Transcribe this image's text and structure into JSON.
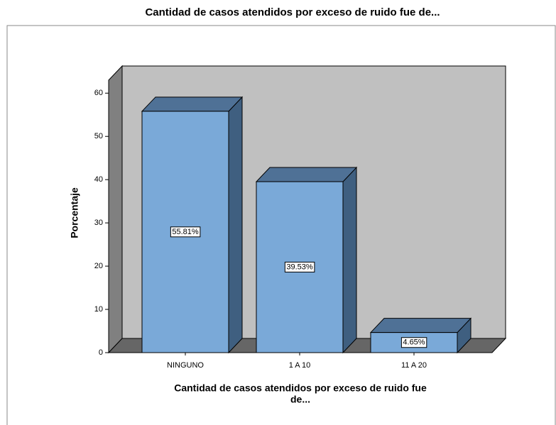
{
  "chart_data": {
    "type": "bar3d",
    "title": "Cantidad de casos atendidos por exceso de ruido fue de...",
    "ylabel": "Porcentaje",
    "xlabel": [
      "Cantidad de casos atendidos por exceso de ruido fue",
      "de..."
    ],
    "categories": [
      "NINGUNO",
      "1 A 10",
      "11 A 20"
    ],
    "values": [
      55.81,
      39.53,
      4.65
    ],
    "value_labels": [
      "55.81%",
      "39.53%",
      "4.65%"
    ],
    "color": "#7aa9d8",
    "ylim": [
      0,
      63
    ],
    "yticks": [
      0,
      10,
      20,
      30,
      40,
      50,
      60
    ]
  }
}
